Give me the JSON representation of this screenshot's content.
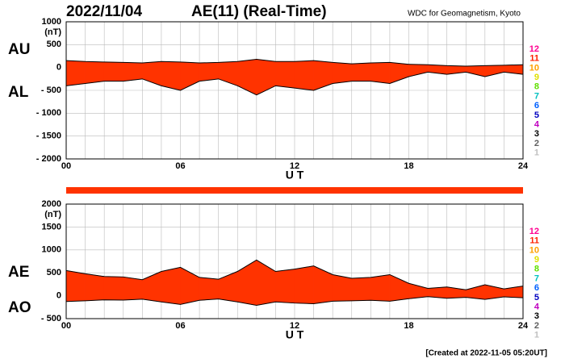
{
  "header": {
    "date": "2022/11/04",
    "title": "AE(11) (Real-Time)",
    "source": "WDC for Geomagnetism, Kyoto"
  },
  "footer": "[Created at 2022-11-05 05:20UT]",
  "scale_labels": [
    12,
    11,
    10,
    9,
    8,
    7,
    6,
    5,
    4,
    3,
    2,
    1
  ],
  "scale_colors": [
    "#ff0090",
    "#ff2000",
    "#ffa000",
    "#e0e000",
    "#60e000",
    "#00c0c0",
    "#0060ff",
    "#0000c0",
    "#c000c0",
    "#000000",
    "#606060",
    "#c0c0c0"
  ],
  "coverage_color": "#ff3300",
  "chart_data": [
    {
      "type": "band",
      "fill": "#ff3300",
      "line_color": "#000000",
      "yunit": "(nT)",
      "xlabel": "U T",
      "x": [
        0,
        1,
        2,
        3,
        4,
        5,
        6,
        7,
        8,
        9,
        10,
        11,
        12,
        13,
        14,
        15,
        16,
        17,
        18,
        19,
        20,
        21,
        22,
        23,
        24
      ],
      "series": [
        {
          "name": "AU",
          "values": [
            150,
            130,
            120,
            110,
            100,
            130,
            120,
            100,
            110,
            130,
            180,
            130,
            130,
            150,
            110,
            80,
            100,
            110,
            70,
            60,
            40,
            30,
            40,
            50,
            60
          ]
        },
        {
          "name": "AL",
          "values": [
            -400,
            -350,
            -300,
            -300,
            -250,
            -400,
            -500,
            -300,
            -250,
            -400,
            -600,
            -400,
            -450,
            -500,
            -350,
            -300,
            -300,
            -350,
            -200,
            -100,
            -150,
            -100,
            -200,
            -100,
            -150
          ]
        }
      ],
      "xlim": [
        0,
        24
      ],
      "xticks": [
        {
          "value": 0,
          "label": "00"
        },
        {
          "value": 6,
          "label": "06"
        },
        12,
        18,
        24
      ],
      "ylim": [
        -2000,
        1000
      ],
      "yticks": [
        1000,
        500,
        0,
        {
          "value": -500,
          "label": "- 500"
        },
        {
          "value": -1000,
          "label": "- 1000"
        },
        {
          "value": -1500,
          "label": "- 1500"
        },
        {
          "value": -2000,
          "label": "- 2000"
        }
      ],
      "grid": true
    },
    {
      "type": "band",
      "fill": "#ff3300",
      "line_color": "#000000",
      "yunit": "(nT)",
      "xlabel": "U T",
      "x": [
        0,
        1,
        2,
        3,
        4,
        5,
        6,
        7,
        8,
        9,
        10,
        11,
        12,
        13,
        14,
        15,
        16,
        17,
        18,
        19,
        20,
        21,
        22,
        23,
        24
      ],
      "series": [
        {
          "name": "AE",
          "values": [
            550,
            480,
            420,
            410,
            350,
            530,
            620,
            400,
            360,
            530,
            780,
            530,
            580,
            650,
            460,
            380,
            400,
            460,
            270,
            160,
            190,
            130,
            240,
            150,
            210
          ]
        },
        {
          "name": "AO",
          "values": [
            -125,
            -110,
            -90,
            -95,
            -75,
            -135,
            -190,
            -100,
            -70,
            -135,
            -210,
            -135,
            -160,
            -175,
            -120,
            -110,
            -100,
            -120,
            -65,
            -20,
            -55,
            -35,
            -80,
            -25,
            -45
          ]
        }
      ],
      "xlim": [
        0,
        24
      ],
      "xticks": [
        {
          "value": 0,
          "label": "00"
        },
        {
          "value": 6,
          "label": "06"
        },
        12,
        18,
        24
      ],
      "ylim": [
        -500,
        2000
      ],
      "yticks": [
        2000,
        1500,
        1000,
        500,
        0,
        {
          "value": -500,
          "label": "- 500"
        }
      ],
      "grid": true
    }
  ]
}
